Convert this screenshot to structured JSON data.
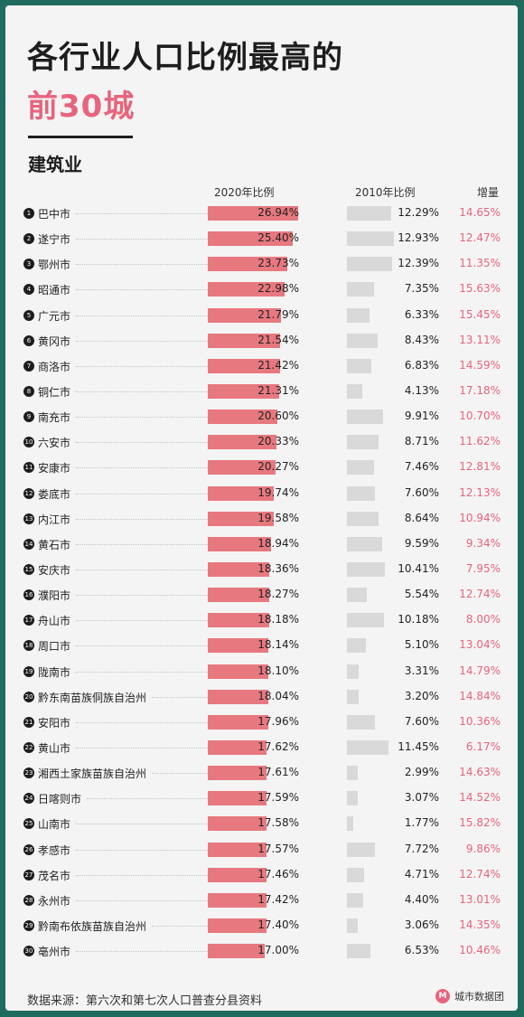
{
  "title_line1": "各行业人口比例最高的",
  "title_line2": "前30城",
  "section_title": "建筑业",
  "headers": {
    "col2020": "2020年比例",
    "col2010": "2010年比例",
    "col_increase": "增量"
  },
  "source": "数据来源：第六次和第七次人口普查分县资料",
  "brand": {
    "mark": "M",
    "name": "城市数据团"
  },
  "colors": {
    "accent": "#e8647c",
    "bar2020": "#e8787f",
    "bar2010": "#d9d9d9",
    "frame": "#1f6b5e"
  },
  "chart_data": {
    "type": "table",
    "columns": [
      "2020年比例",
      "2010年比例",
      "增量"
    ],
    "rows": [
      {
        "rank": "1",
        "city": "巴中市",
        "v2020": 26.94,
        "p2020": "26.94%",
        "v2010": 12.29,
        "p2010": "12.29%",
        "inc": "14.65%"
      },
      {
        "rank": "2",
        "city": "遂宁市",
        "v2020": 25.4,
        "p2020": "25.40%",
        "v2010": 12.93,
        "p2010": "12.93%",
        "inc": "12.47%"
      },
      {
        "rank": "3",
        "city": "鄂州市",
        "v2020": 23.73,
        "p2020": "23.73%",
        "v2010": 12.39,
        "p2010": "12.39%",
        "inc": "11.35%"
      },
      {
        "rank": "4",
        "city": "昭通市",
        "v2020": 22.98,
        "p2020": "22.98%",
        "v2010": 7.35,
        "p2010": "7.35%",
        "inc": "15.63%"
      },
      {
        "rank": "5",
        "city": "广元市",
        "v2020": 21.79,
        "p2020": "21.79%",
        "v2010": 6.33,
        "p2010": "6.33%",
        "inc": "15.45%"
      },
      {
        "rank": "6",
        "city": "黄冈市",
        "v2020": 21.54,
        "p2020": "21.54%",
        "v2010": 8.43,
        "p2010": "8.43%",
        "inc": "13.11%"
      },
      {
        "rank": "7",
        "city": "商洛市",
        "v2020": 21.42,
        "p2020": "21.42%",
        "v2010": 6.83,
        "p2010": "6.83%",
        "inc": "14.59%"
      },
      {
        "rank": "8",
        "city": "铜仁市",
        "v2020": 21.31,
        "p2020": "21.31%",
        "v2010": 4.13,
        "p2010": "4.13%",
        "inc": "17.18%"
      },
      {
        "rank": "9",
        "city": "南充市",
        "v2020": 20.6,
        "p2020": "20.60%",
        "v2010": 9.91,
        "p2010": "9.91%",
        "inc": "10.70%"
      },
      {
        "rank": "10",
        "city": "六安市",
        "v2020": 20.33,
        "p2020": "20.33%",
        "v2010": 8.71,
        "p2010": "8.71%",
        "inc": "11.62%"
      },
      {
        "rank": "11",
        "city": "安康市",
        "v2020": 20.27,
        "p2020": "20.27%",
        "v2010": 7.46,
        "p2010": "7.46%",
        "inc": "12.81%"
      },
      {
        "rank": "12",
        "city": "娄底市",
        "v2020": 19.74,
        "p2020": "19.74%",
        "v2010": 7.6,
        "p2010": "7.60%",
        "inc": "12.13%"
      },
      {
        "rank": "13",
        "city": "内江市",
        "v2020": 19.58,
        "p2020": "19.58%",
        "v2010": 8.64,
        "p2010": "8.64%",
        "inc": "10.94%"
      },
      {
        "rank": "14",
        "city": "黄石市",
        "v2020": 18.94,
        "p2020": "18.94%",
        "v2010": 9.59,
        "p2010": "9.59%",
        "inc": "9.34%"
      },
      {
        "rank": "15",
        "city": "安庆市",
        "v2020": 18.36,
        "p2020": "18.36%",
        "v2010": 10.41,
        "p2010": "10.41%",
        "inc": "7.95%"
      },
      {
        "rank": "16",
        "city": "濮阳市",
        "v2020": 18.27,
        "p2020": "18.27%",
        "v2010": 5.54,
        "p2010": "5.54%",
        "inc": "12.74%"
      },
      {
        "rank": "17",
        "city": "舟山市",
        "v2020": 18.18,
        "p2020": "18.18%",
        "v2010": 10.18,
        "p2010": "10.18%",
        "inc": "8.00%"
      },
      {
        "rank": "18",
        "city": "周口市",
        "v2020": 18.14,
        "p2020": "18.14%",
        "v2010": 5.1,
        "p2010": "5.10%",
        "inc": "13.04%"
      },
      {
        "rank": "19",
        "city": "陇南市",
        "v2020": 18.1,
        "p2020": "18.10%",
        "v2010": 3.31,
        "p2010": "3.31%",
        "inc": "14.79%"
      },
      {
        "rank": "20",
        "city": "黔东南苗族侗族自治州",
        "v2020": 18.04,
        "p2020": "18.04%",
        "v2010": 3.2,
        "p2010": "3.20%",
        "inc": "14.84%"
      },
      {
        "rank": "21",
        "city": "安阳市",
        "v2020": 17.96,
        "p2020": "17.96%",
        "v2010": 7.6,
        "p2010": "7.60%",
        "inc": "10.36%"
      },
      {
        "rank": "22",
        "city": "黄山市",
        "v2020": 17.62,
        "p2020": "17.62%",
        "v2010": 11.45,
        "p2010": "11.45%",
        "inc": "6.17%"
      },
      {
        "rank": "23",
        "city": "湘西土家族苗族自治州",
        "v2020": 17.61,
        "p2020": "17.61%",
        "v2010": 2.99,
        "p2010": "2.99%",
        "inc": "14.63%"
      },
      {
        "rank": "24",
        "city": "日喀则市",
        "v2020": 17.59,
        "p2020": "17.59%",
        "v2010": 3.07,
        "p2010": "3.07%",
        "inc": "14.52%"
      },
      {
        "rank": "25",
        "city": "山南市",
        "v2020": 17.58,
        "p2020": "17.58%",
        "v2010": 1.77,
        "p2010": "1.77%",
        "inc": "15.82%"
      },
      {
        "rank": "26",
        "city": "孝感市",
        "v2020": 17.57,
        "p2020": "17.57%",
        "v2010": 7.72,
        "p2010": "7.72%",
        "inc": "9.86%"
      },
      {
        "rank": "27",
        "city": "茂名市",
        "v2020": 17.46,
        "p2020": "17.46%",
        "v2010": 4.71,
        "p2010": "4.71%",
        "inc": "12.74%"
      },
      {
        "rank": "28",
        "city": "永州市",
        "v2020": 17.42,
        "p2020": "17.42%",
        "v2010": 4.4,
        "p2010": "4.40%",
        "inc": "13.01%"
      },
      {
        "rank": "29",
        "city": "黔南布依族苗族自治州",
        "v2020": 17.4,
        "p2020": "17.40%",
        "v2010": 3.06,
        "p2010": "3.06%",
        "inc": "14.35%"
      },
      {
        "rank": "30",
        "city": "亳州市",
        "v2020": 17.0,
        "p2020": "17.00%",
        "v2010": 6.53,
        "p2010": "6.53%",
        "inc": "10.46%"
      }
    ]
  }
}
